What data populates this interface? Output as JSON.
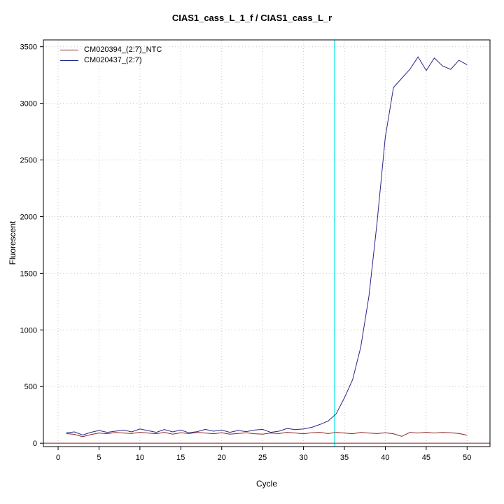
{
  "chart_data": {
    "type": "line",
    "title": "CIAS1_cass_L_1_f / CIAS1_cass_L_r",
    "xlabel": "Cycle",
    "ylabel": "Fluorescent",
    "x_ticks": [
      0,
      5,
      10,
      15,
      20,
      25,
      30,
      35,
      40,
      45,
      50
    ],
    "y_ticks": [
      0,
      500,
      1000,
      1500,
      2000,
      2500,
      3000,
      3500
    ],
    "xlim": [
      -1.8,
      52.8
    ],
    "ylim": [
      -30,
      3560
    ],
    "grid": true,
    "legend_position": "top-left",
    "grid_color": "#c9c9c9",
    "axis_color": "#000000",
    "threshold_line": {
      "y": 0,
      "color": "#8b2323"
    },
    "ct_line": {
      "x": 33.8,
      "color": "#00e5e5"
    },
    "x": [
      1,
      2,
      3,
      4,
      5,
      6,
      7,
      8,
      9,
      10,
      11,
      12,
      13,
      14,
      15,
      16,
      17,
      18,
      19,
      20,
      21,
      22,
      23,
      24,
      25,
      26,
      27,
      28,
      29,
      30,
      31,
      32,
      33,
      34,
      35,
      36,
      37,
      38,
      39,
      40,
      41,
      42,
      43,
      44,
      45,
      46,
      47,
      48,
      49,
      50
    ],
    "series": [
      {
        "name": "CM020394_(2:7)_NTC",
        "color": "#8b2323",
        "values": [
          85,
          78,
          58,
          76,
          90,
          84,
          95,
          90,
          86,
          96,
          90,
          84,
          96,
          80,
          92,
          85,
          95,
          90,
          84,
          92,
          80,
          86,
          92,
          84,
          80,
          90,
          85,
          96,
          90,
          84,
          92,
          96,
          85,
          95,
          90,
          84,
          95,
          90,
          85,
          92,
          84,
          60,
          95,
          90,
          96,
          90,
          95,
          92,
          86,
          70
        ]
      },
      {
        "name": "CM020437_(2:7)",
        "color": "#26268b",
        "values": [
          92,
          100,
          72,
          96,
          112,
          96,
          106,
          116,
          100,
          126,
          110,
          96,
          120,
          100,
          116,
          92,
          102,
          122,
          106,
          116,
          96,
          112,
          102,
          116,
          122,
          96,
          106,
          130,
          120,
          126,
          140,
          165,
          195,
          260,
          400,
          560,
          850,
          1300,
          1950,
          2700,
          3140,
          3220,
          3300,
          3410,
          3290,
          3400,
          3330,
          3300,
          3380,
          3340
        ]
      }
    ]
  }
}
